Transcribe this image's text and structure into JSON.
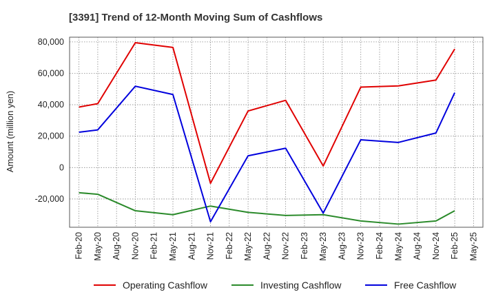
{
  "chart_data": {
    "type": "line",
    "title": "[3391]  Trend of 12-Month Moving Sum of Cashflows",
    "ylabel": "Amount (million yen)",
    "xlabel": "",
    "x": [
      "Feb-20",
      "May-20",
      "Aug-20",
      "Nov-20",
      "Feb-21",
      "May-21",
      "Aug-21",
      "Nov-21",
      "Feb-22",
      "May-22",
      "Aug-22",
      "Nov-22",
      "Feb-23",
      "May-23",
      "Aug-23",
      "Nov-23",
      "Feb-24",
      "May-24",
      "Aug-24",
      "Nov-24",
      "Feb-25",
      "May-25"
    ],
    "ylim": [
      -38000,
      83000
    ],
    "yticks": [
      -20000,
      0,
      20000,
      40000,
      60000,
      80000
    ],
    "ytick_labels": [
      "-20,000",
      "0",
      "20,000",
      "40,000",
      "60,000",
      "80,000"
    ],
    "grid": true,
    "legend_position": "bottom",
    "series": [
      {
        "name": "Operating Cashflow",
        "color": "#e00000",
        "values": [
          38500,
          40700,
          null,
          79500,
          null,
          76500,
          null,
          -10000,
          null,
          36000,
          null,
          42800,
          null,
          1000,
          null,
          51200,
          null,
          52000,
          null,
          55700,
          75500,
          null
        ]
      },
      {
        "name": "Investing Cashflow",
        "color": "#2a8a2a",
        "values": [
          -16000,
          -17000,
          null,
          -27500,
          null,
          -30000,
          null,
          -24500,
          null,
          -28500,
          null,
          -30500,
          null,
          -30000,
          null,
          -34000,
          null,
          -36000,
          null,
          -34000,
          -27500,
          null
        ]
      },
      {
        "name": "Free Cashflow",
        "color": "#0000dd",
        "values": [
          22500,
          24000,
          null,
          51800,
          null,
          46500,
          null,
          -34500,
          null,
          7500,
          null,
          12300,
          null,
          -29000,
          null,
          17700,
          null,
          16000,
          null,
          22000,
          47700,
          null
        ]
      }
    ]
  }
}
